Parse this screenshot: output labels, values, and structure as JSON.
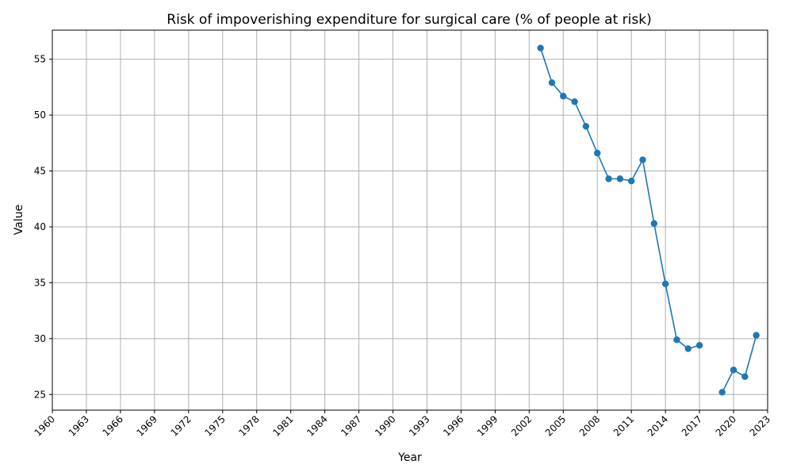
{
  "chart_data": {
    "type": "line",
    "title": "Risk of impoverishing expenditure for surgical care (% of people at risk)",
    "xlabel": "Year",
    "ylabel": "Value",
    "xlim": [
      1960,
      2023
    ],
    "ylim": [
      23.6,
      57.6
    ],
    "x_ticks": [
      1960,
      1963,
      1966,
      1969,
      1972,
      1975,
      1978,
      1981,
      1984,
      1987,
      1990,
      1993,
      1996,
      1999,
      2002,
      2005,
      2008,
      2011,
      2014,
      2017,
      2020,
      2023
    ],
    "y_ticks": [
      25,
      30,
      35,
      40,
      45,
      50,
      55
    ],
    "grid": true,
    "color": "#1f77b4",
    "series": [
      {
        "x": [
          2003,
          2004,
          2005,
          2006,
          2007,
          2008,
          2009,
          2010,
          2011,
          2012,
          2013,
          2014,
          2015,
          2016,
          2017,
          2018,
          2019,
          2020,
          2021,
          2022
        ],
        "values": [
          56.0,
          52.9,
          51.7,
          51.2,
          49.0,
          46.6,
          44.3,
          44.3,
          44.1,
          46.0,
          40.3,
          34.9,
          29.9,
          29.1,
          29.4,
          null,
          25.2,
          27.2,
          26.6,
          30.3
        ]
      }
    ]
  }
}
